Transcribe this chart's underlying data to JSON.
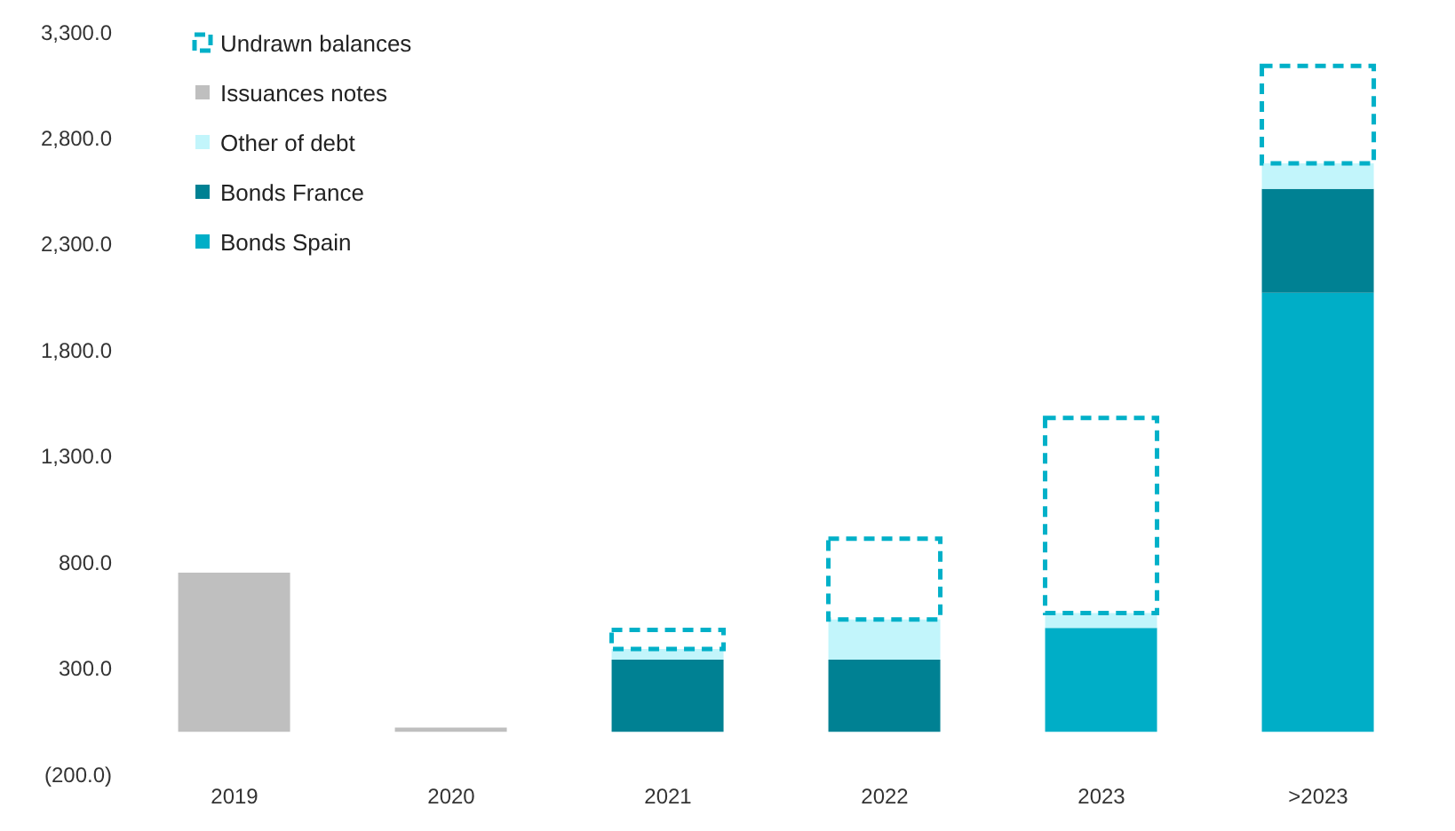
{
  "chart_data": {
    "type": "bar",
    "stacked": true,
    "categories": [
      "2019",
      "2020",
      "2021",
      "2022",
      "2023",
      ">2023"
    ],
    "series": [
      {
        "name": "Bonds Spain",
        "color": "#00aec7",
        "values": [
          0,
          0,
          0,
          0,
          490,
          2070
        ]
      },
      {
        "name": "Bonds France",
        "color": "#008193",
        "values": [
          0,
          0,
          340,
          340,
          0,
          490
        ]
      },
      {
        "name": "Other of debt",
        "color": "#c2f5fb",
        "values": [
          0,
          0,
          50,
          190,
          70,
          120
        ]
      },
      {
        "name": "Issuances notes",
        "color": "#bfbfbf",
        "values": [
          750,
          20,
          0,
          0,
          0,
          0
        ]
      },
      {
        "name": "Undrawn balances",
        "color": "#00b0c8",
        "line_style": "dashed",
        "values": [
          0,
          0,
          90,
          380,
          920,
          460
        ]
      }
    ],
    "ylim": [
      -200,
      3300
    ],
    "yticks": [
      {
        "value": -200,
        "label": "(200.0)"
      },
      {
        "value": 300,
        "label": "300.0"
      },
      {
        "value": 800,
        "label": "800.0"
      },
      {
        "value": 1300,
        "label": "1,300.0"
      },
      {
        "value": 1800,
        "label": "1,800.0"
      },
      {
        "value": 2300,
        "label": "2,300.0"
      },
      {
        "value": 2800,
        "label": "2,800.0"
      },
      {
        "value": 3300,
        "label": "3,300.0"
      }
    ],
    "grid": false,
    "legend": "top left"
  }
}
